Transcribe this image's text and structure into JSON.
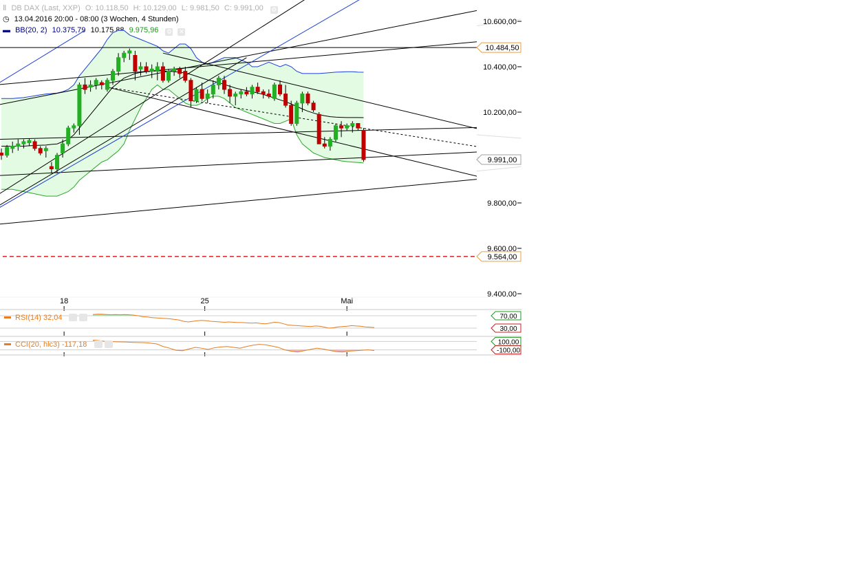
{
  "header": {
    "instrument": "DB DAX (Last, XXP)",
    "ohlc": {
      "o": "O: 10.118,50",
      "h": "H: 10.129,00",
      "l": "L: 9.981,50",
      "c": "C: 9.991,00"
    },
    "period": "13.04.2016 20:00 - 08:00 (3 Wochen, 4 Stunden)",
    "bb_label": "BB(20, 2)",
    "bb_upper": "10.375,79",
    "bb_mid": "10.175,88",
    "bb_lower": "9.975,96"
  },
  "price_axis": {
    "ticks": [
      {
        "v": 10600,
        "label": "10.600,00"
      },
      {
        "v": 10400,
        "label": "10.400,00"
      },
      {
        "v": 10200,
        "label": "10.200,00"
      },
      {
        "v": 9800,
        "label": "9.800,00"
      },
      {
        "v": 9600,
        "label": "9.600,00"
      },
      {
        "v": 9400,
        "label": "9.400,00"
      }
    ],
    "markers": [
      {
        "v": 10484.5,
        "label": "10.484,50",
        "color": "#e8a040"
      },
      {
        "v": 9991,
        "label": "9.991,00",
        "color": "#a0a0a0"
      },
      {
        "v": 9564,
        "label": "9.564,00",
        "color": "#e8a040"
      }
    ],
    "range": [
      9400,
      10700
    ]
  },
  "x_axis": {
    "labels": [
      {
        "i": 11.25,
        "label": "18"
      },
      {
        "i": 36.5,
        "label": "25"
      },
      {
        "i": 62,
        "label": "Mai"
      }
    ]
  },
  "rsi": {
    "label": "RSI(14)",
    "value": "32,04",
    "levels": [
      {
        "v": 70,
        "label": "70,00",
        "color": "#1a9a1a"
      },
      {
        "v": 30,
        "label": "30,00",
        "color": "#c02020"
      }
    ],
    "values": [
      74,
      75,
      75,
      74,
      73,
      74,
      73,
      74,
      73,
      72,
      70,
      67,
      66,
      64,
      63,
      62,
      61,
      60,
      58,
      56,
      52,
      50,
      52,
      54,
      55,
      54,
      52,
      51,
      50,
      49,
      50,
      49,
      48,
      48,
      47,
      46,
      47,
      45,
      44,
      46,
      49,
      48,
      44,
      40,
      39,
      38,
      37,
      36,
      35,
      37,
      36,
      33,
      30,
      31,
      34,
      35,
      36,
      38,
      37,
      36,
      34,
      33,
      32
    ]
  },
  "cci": {
    "label": "CCI(20, hlc3)",
    "value": "-117,18",
    "levels": [
      {
        "v": 100,
        "label": "100,00",
        "color": "#1a9a1a"
      },
      {
        "v": -100,
        "label": "-100,00",
        "color": "#c02020"
      }
    ],
    "values": [
      130,
      120,
      100,
      95,
      90,
      88,
      80,
      75,
      72,
      60,
      40,
      -20,
      -60,
      -110,
      -120,
      -80,
      -40,
      -60,
      -90,
      -50,
      -30,
      -20,
      -40,
      -60,
      -20,
      10,
      30,
      20,
      -10,
      -40,
      -100,
      -130,
      -150,
      -120,
      -90,
      -60,
      -80,
      -110,
      -140,
      -150,
      -130,
      -120,
      -110,
      -100,
      -117
    ]
  },
  "chart_data": {
    "type": "candlestick",
    "title": "DB DAX (Last, XXP)",
    "interval": "4 Stunden",
    "x_labels": [
      "18",
      "25",
      "Mai"
    ],
    "ylim": [
      9400,
      10700
    ],
    "candles": [
      [
        10020,
        10040,
        9990,
        10010
      ],
      [
        10010,
        10055,
        10000,
        10045
      ],
      [
        10040,
        10070,
        10020,
        10050
      ],
      [
        10050,
        10080,
        10030,
        10060
      ],
      [
        10060,
        10080,
        10040,
        10070
      ],
      [
        10065,
        10085,
        10050,
        10075
      ],
      [
        10070,
        10080,
        10030,
        10040
      ],
      [
        10040,
        10050,
        10010,
        10020
      ],
      [
        10030,
        10050,
        10000,
        10040
      ],
      [
        9960,
        9980,
        9930,
        9950
      ],
      [
        9950,
        10020,
        9930,
        10010
      ],
      [
        10020,
        10080,
        10000,
        10060
      ],
      [
        10060,
        10140,
        10050,
        10130
      ],
      [
        10130,
        10150,
        10110,
        10140
      ],
      [
        10140,
        10330,
        10100,
        10320
      ],
      [
        10320,
        10350,
        10280,
        10300
      ],
      [
        10310,
        10340,
        10290,
        10320
      ],
      [
        10320,
        10350,
        10300,
        10340
      ],
      [
        10330,
        10340,
        10300,
        10320
      ],
      [
        10300,
        10350,
        10290,
        10340
      ],
      [
        10340,
        10390,
        10320,
        10380
      ],
      [
        10380,
        10460,
        10360,
        10440
      ],
      [
        10440,
        10470,
        10420,
        10460
      ],
      [
        10460,
        10480,
        10430,
        10470
      ],
      [
        10450,
        10470,
        10340,
        10380
      ],
      [
        10390,
        10420,
        10360,
        10400
      ],
      [
        10400,
        10420,
        10370,
        10380
      ],
      [
        10380,
        10410,
        10350,
        10390
      ],
      [
        10380,
        10420,
        10340,
        10400
      ],
      [
        10400,
        10420,
        10330,
        10340
      ],
      [
        10340,
        10390,
        10330,
        10380
      ],
      [
        10380,
        10400,
        10360,
        10390
      ],
      [
        10390,
        10400,
        10350,
        10370
      ],
      [
        10380,
        10400,
        10330,
        10340
      ],
      [
        10340,
        10350,
        10220,
        10250
      ],
      [
        10250,
        10310,
        10240,
        10300
      ],
      [
        10300,
        10330,
        10250,
        10260
      ],
      [
        10260,
        10300,
        10240,
        10280
      ],
      [
        10280,
        10340,
        10260,
        10320
      ],
      [
        10320,
        10360,
        10300,
        10350
      ],
      [
        10340,
        10360,
        10280,
        10300
      ],
      [
        10300,
        10320,
        10240,
        10270
      ],
      [
        10270,
        10290,
        10230,
        10280
      ],
      [
        10280,
        10300,
        10260,
        10290
      ],
      [
        10290,
        10310,
        10270,
        10280
      ],
      [
        10280,
        10320,
        10260,
        10310
      ],
      [
        10310,
        10330,
        10280,
        10290
      ],
      [
        10290,
        10300,
        10260,
        10280
      ],
      [
        10280,
        10300,
        10260,
        10270
      ],
      [
        10260,
        10330,
        10250,
        10320
      ],
      [
        10320,
        10340,
        10270,
        10280
      ],
      [
        10280,
        10320,
        10220,
        10230
      ],
      [
        10230,
        10250,
        10140,
        10150
      ],
      [
        10150,
        10250,
        10140,
        10240
      ],
      [
        10240,
        10290,
        10200,
        10280
      ],
      [
        10280,
        10290,
        10230,
        10240
      ],
      [
        10240,
        10250,
        10200,
        10210
      ],
      [
        10190,
        10200,
        10060,
        10060
      ],
      [
        10060,
        10090,
        10040,
        10050
      ],
      [
        10050,
        10090,
        10030,
        10080
      ],
      [
        10080,
        10150,
        10070,
        10140
      ],
      [
        10140,
        10160,
        10090,
        10130
      ],
      [
        10130,
        10150,
        10120,
        10140
      ],
      [
        10140,
        10160,
        10110,
        10150
      ],
      [
        10150,
        10150,
        10120,
        10130
      ],
      [
        10120,
        10130,
        9981.5,
        9991
      ]
    ],
    "bollinger": {
      "upper": [
        10260,
        10260,
        10260,
        10262,
        10264,
        10268,
        10272,
        10276,
        10280,
        10282,
        10284,
        10290,
        10300,
        10320,
        10360,
        10390,
        10420,
        10450,
        10480,
        10520,
        10550,
        10560,
        10560,
        10540,
        10530,
        10520,
        10510,
        10500,
        10490,
        10470,
        10460,
        10480,
        10500,
        10500,
        10480,
        10440,
        10420,
        10410,
        10420,
        10430,
        10440,
        10440,
        10440,
        10430,
        10420,
        10400,
        10400,
        10410,
        10420,
        10410,
        10400,
        10410,
        10400,
        10380,
        10370,
        10370,
        10370,
        10370,
        10372,
        10374,
        10376,
        10377,
        10378,
        10378,
        10376,
        10375.79
      ],
      "mid": [
        10050,
        10050,
        10050,
        10050,
        10050,
        10052,
        10053,
        10054,
        10055,
        10058,
        10060,
        10070,
        10080,
        10100,
        10130,
        10160,
        10190,
        10220,
        10250,
        10280,
        10310,
        10330,
        10350,
        10360,
        10370,
        10375,
        10378,
        10380,
        10382,
        10381,
        10380,
        10378,
        10376,
        10372,
        10366,
        10358,
        10350,
        10342,
        10336,
        10330,
        10322,
        10314,
        10306,
        10300,
        10295,
        10290,
        10284,
        10278,
        10270,
        10262,
        10254,
        10246,
        10236,
        10225,
        10214,
        10204,
        10196,
        10189,
        10184,
        10180,
        10178,
        10177,
        10176,
        10176,
        10176,
        10175.88
      ],
      "lower": [
        9860,
        9860,
        9860,
        9855,
        9850,
        9845,
        9840,
        9835,
        9830,
        9830,
        9830,
        9840,
        9850,
        9870,
        9900,
        9920,
        9940,
        9960,
        9980,
        9990,
        10010,
        10030,
        10060,
        10120,
        10170,
        10220,
        10260,
        10300,
        10320,
        10300,
        10300,
        10280,
        10260,
        10240,
        10230,
        10230,
        10240,
        10260,
        10270,
        10270,
        10260,
        10240,
        10220,
        10210,
        10200,
        10190,
        10180,
        10170,
        10160,
        10150,
        10150,
        10160,
        10170,
        10100,
        10060,
        10040,
        10020,
        10010,
        10000,
        9995,
        9990,
        9985,
        9982,
        9980,
        9978,
        9975.96
      ]
    },
    "lines": [
      {
        "style": "solid",
        "color": "#000",
        "from": [
          -1,
          10230
        ],
        "to": [
          90,
          10670
        ]
      },
      {
        "style": "solid",
        "color": "#000",
        "from": [
          -1,
          10320
        ],
        "to": [
          90,
          10520
        ]
      },
      {
        "style": "solid",
        "color": "#000",
        "from": [
          -1,
          10080
        ],
        "to": [
          90,
          10135
        ]
      },
      {
        "style": "solid",
        "color": "#000",
        "from": [
          -1,
          9920
        ],
        "to": [
          90,
          10030
        ]
      },
      {
        "style": "solid",
        "color": "#000",
        "from": [
          -1,
          9705
        ],
        "to": [
          90,
          9915
        ]
      },
      {
        "style": "solid",
        "color": "#000",
        "from": [
          19,
          10310
        ],
        "to": [
          90,
          9890
        ]
      },
      {
        "style": "solid",
        "color": "#000",
        "from": [
          29,
          10460
        ],
        "to": [
          90,
          10100
        ]
      },
      {
        "style": "dashed",
        "color": "#000",
        "from": [
          19,
          10310
        ],
        "to": [
          90,
          10030
        ]
      },
      {
        "style": "solid",
        "color": "#000",
        "from": [
          -1,
          9830
        ],
        "to": [
          56,
          10720
        ]
      },
      {
        "style": "solid",
        "color": "#000",
        "from": [
          -1,
          9780
        ],
        "to": [
          44,
          10440
        ]
      },
      {
        "style": "solid",
        "color": "#1a3fd6",
        "from": [
          -1,
          10320
        ],
        "to": [
          15,
          10560
        ]
      },
      {
        "style": "solid",
        "color": "#1a3fd6",
        "from": [
          -1,
          9770
        ],
        "to": [
          66,
          10720
        ]
      },
      {
        "style": "solid",
        "color": "#000",
        "from": [
          -1,
          10484.5
        ],
        "to": [
          90,
          10484.5
        ]
      },
      {
        "style": "dashed",
        "color": "#d42020",
        "from": [
          -1,
          9564
        ],
        "to": [
          90,
          9564
        ]
      }
    ]
  }
}
